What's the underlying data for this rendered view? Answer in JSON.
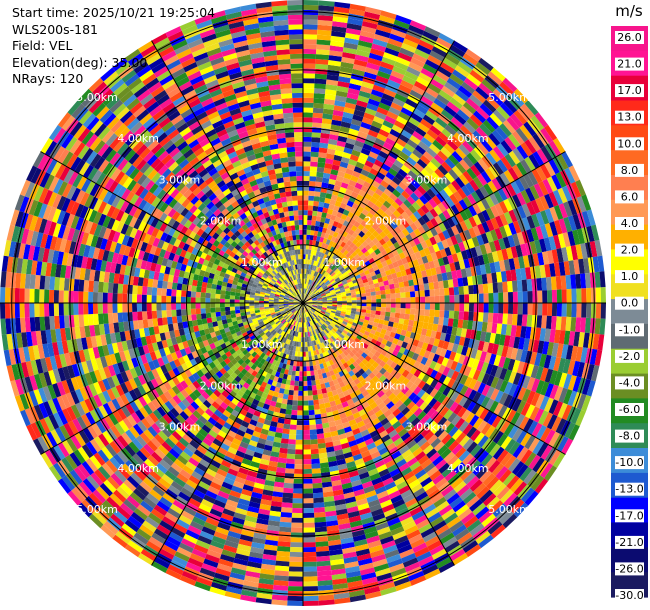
{
  "header": {
    "start_time": "Start time: 2025/10/21 19:25:04",
    "instrument": "WLS200s-181",
    "field": "Field: VEL",
    "elevation": "Elevation(deg): 35.00",
    "nrays": "NRays: 120"
  },
  "chart_data": {
    "type": "heatmap",
    "projection": "polar-ppi",
    "field": "VEL",
    "nrays": 120,
    "max_range_km": 5.2,
    "range_ring_labels_km": [
      "1.00km",
      "2.00km",
      "3.00km",
      "4.00km",
      "5.00km"
    ],
    "range_rings_km": [
      1,
      2,
      3,
      4,
      5
    ],
    "azimuth_spokes_deg": [
      0,
      30,
      60,
      90,
      120,
      150,
      180,
      210,
      240,
      270,
      300,
      330
    ],
    "signal_region": {
      "description_free": true,
      "near_range_km": 1.0,
      "near_values": [
        -2.0,
        -1.0,
        0.0,
        1.0
      ],
      "positive_sector_az_deg": [
        15,
        170
      ],
      "positive_sector_range_km": [
        0.6,
        2.4
      ],
      "positive_values": [
        2.0,
        4.0,
        6.0
      ],
      "negative_sector_az_deg": [
        200,
        300
      ],
      "negative_sector_range_km": [
        0.5,
        2.0
      ],
      "negative_values": [
        -4.0,
        -6.0,
        -8.0
      ]
    },
    "colorbar": {
      "unit": "m/s",
      "ticks": [
        "26.0",
        "21.0",
        "17.0",
        "13.0",
        "10.0",
        "8.0",
        "6.0",
        "4.0",
        "2.0",
        "1.0",
        "0.0",
        "-1.0",
        "-2.0",
        "-4.0",
        "-6.0",
        "-8.0",
        "-10.0",
        "-13.0",
        "-17.0",
        "-21.0",
        "-26.0",
        "-30.0"
      ],
      "colors": [
        "#f7158c",
        "#ff1493",
        "#e8003a",
        "#ff2a1a",
        "#ff4a14",
        "#ff6a22",
        "#ff7f50",
        "#ff9955",
        "#ffb000",
        "#ffff00",
        "#f0e020",
        "#7d8b96",
        "#5f6b73",
        "#9acd32",
        "#6b8e23",
        "#228b22",
        "#2e8b57",
        "#3c8cd8",
        "#1e5ad0",
        "#0000ff",
        "#0000a0",
        "#0b0b70",
        "#1a1a60"
      ]
    }
  }
}
